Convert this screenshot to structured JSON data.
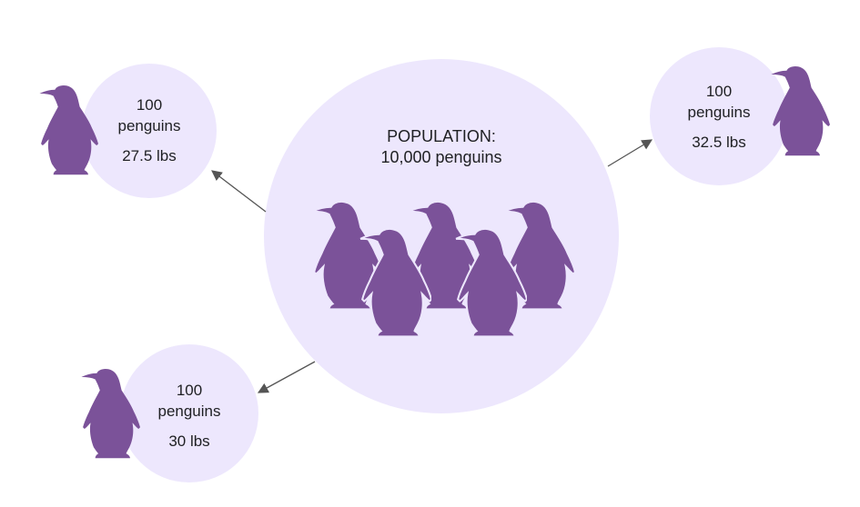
{
  "population": {
    "heading": "POPULATION:",
    "count": "10,000 penguins"
  },
  "samples": [
    {
      "count": "100",
      "unit": "penguins",
      "weight": "27.5 lbs"
    },
    {
      "count": "100",
      "unit": "penguins",
      "weight": "32.5 lbs"
    },
    {
      "count": "100",
      "unit": "penguins",
      "weight": "30 lbs"
    }
  ],
  "colors": {
    "circle_fill": "#ede7fd",
    "penguin": "#7b5299",
    "arrow": "#555555",
    "text": "#202124"
  },
  "icons": [
    "penguin-icon",
    "arrow-icon"
  ]
}
